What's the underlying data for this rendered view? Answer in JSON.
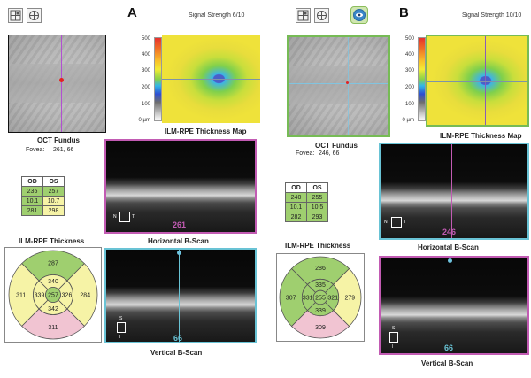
{
  "panels": [
    {
      "letter": "A",
      "signal": "Signal Strength 6/10",
      "fundus_label": "OCT Fundus",
      "fovea_label": "Fovea:",
      "fovea_value": "261, 66",
      "scale_ticks": [
        "500",
        "400",
        "300",
        "200",
        "100",
        "0 µm"
      ],
      "map_label": "ILM-RPE Thickness Map",
      "hscan_label": "Horizontal B-Scan",
      "hscan_pos": "261",
      "vscan_label": "Vertical B-Scan",
      "vscan_pos": "66",
      "orient_h": {
        "n": "N",
        "t": "T"
      },
      "orient_v": {
        "s": "S",
        "i": "I"
      },
      "table": {
        "headers": [
          "OD",
          "OS"
        ],
        "rows": [
          [
            "235",
            "257"
          ],
          [
            "10.1",
            "10.7"
          ],
          [
            "281",
            "298"
          ]
        ],
        "colors": [
          [
            "g",
            "g"
          ],
          [
            "g",
            "y"
          ],
          [
            "g",
            "y"
          ]
        ]
      },
      "thickness_label": "ILM-RPE Thickness",
      "etdrs": {
        "outer_top": "287",
        "outer_left": "311",
        "outer_right": "284",
        "outer_bottom": "311",
        "inner_top": "340",
        "inner_left": "339",
        "inner_right": "326",
        "inner_bottom": "342",
        "center": "257",
        "colors": {
          "outer_top": "g",
          "outer_left": "y",
          "outer_right": "y",
          "outer_bottom": "p",
          "inner_top": "y",
          "inner_left": "y",
          "inner_right": "y",
          "inner_bottom": "y",
          "center": "g"
        }
      }
    },
    {
      "letter": "B",
      "signal": "Signal Strength 10/10",
      "fundus_label": "OCT Fundus",
      "fovea_label": "Fovea:",
      "fovea_value": "246, 66",
      "scale_ticks": [
        "500",
        "400",
        "300",
        "200",
        "100",
        "0 µm"
      ],
      "map_label": "ILM-RPE Thickness Map",
      "hscan_label": "Horizontal B-Scan",
      "hscan_pos": "246",
      "vscan_label": "Vertical B-Scan",
      "vscan_pos": "66",
      "orient_h": {
        "n": "N",
        "t": "T"
      },
      "orient_v": {
        "s": "S",
        "i": "I"
      },
      "table": {
        "headers": [
          "OD",
          "OS"
        ],
        "rows": [
          [
            "240",
            "255"
          ],
          [
            "10.1",
            "10.5"
          ],
          [
            "282",
            "293"
          ]
        ],
        "colors": [
          [
            "g",
            "g"
          ],
          [
            "g",
            "g"
          ],
          [
            "g",
            "g"
          ]
        ]
      },
      "thickness_label": "ILM-RPE Thickness",
      "etdrs": {
        "outer_top": "286",
        "outer_left": "307",
        "outer_right": "279",
        "outer_bottom": "309",
        "inner_top": "335",
        "inner_left": "331",
        "inner_right": "321",
        "inner_bottom": "339",
        "center": "255",
        "colors": {
          "outer_top": "g",
          "outer_left": "g",
          "outer_right": "y",
          "outer_bottom": "p",
          "inner_top": "g",
          "inner_left": "g",
          "inner_right": "g",
          "inner_bottom": "g",
          "center": "g"
        }
      }
    }
  ],
  "colors": {
    "green": "#9fcf6f",
    "yellow": "#f6f3a6",
    "pink": "#f1c4d2",
    "hscan_accent": "#c25bb3",
    "vscan_accent": "#69c3d5"
  },
  "icons": [
    "grid-layout-icon",
    "target-icon",
    "eye-badge-icon"
  ]
}
